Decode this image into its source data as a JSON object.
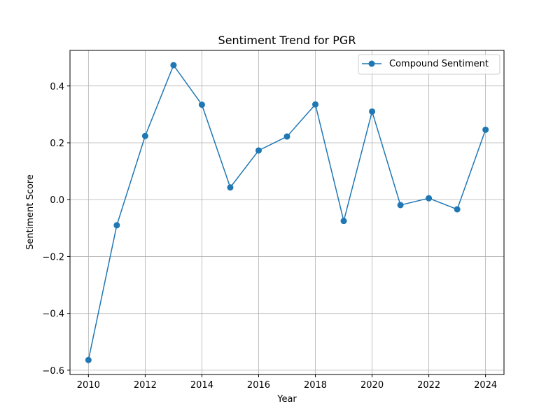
{
  "chart_data": {
    "type": "line",
    "title": "Sentiment Trend for PGR",
    "xlabel": "Year",
    "ylabel": "Sentiment Score",
    "xlim": [
      2009.35,
      2024.65
    ],
    "ylim": [
      -0.615,
      0.525
    ],
    "xticks": [
      2010,
      2012,
      2014,
      2016,
      2018,
      2020,
      2022,
      2024
    ],
    "xtick_labels": [
      "2010",
      "2012",
      "2014",
      "2016",
      "2018",
      "2020",
      "2022",
      "2024"
    ],
    "yticks": [
      -0.6,
      -0.4,
      -0.2,
      0.0,
      0.2,
      0.4
    ],
    "ytick_labels": [
      "−0.6",
      "−0.4",
      "−0.2",
      "0.0",
      "0.2",
      "0.4"
    ],
    "grid": true,
    "legend_position": "top-right",
    "series": [
      {
        "name": "Compound Sentiment",
        "color": "#1f77b4",
        "marker": "circle",
        "x": [
          2010,
          2011,
          2012,
          2013,
          2014,
          2015,
          2016,
          2017,
          2018,
          2019,
          2020,
          2021,
          2022,
          2023,
          2024
        ],
        "y": [
          -0.564,
          -0.09,
          0.224,
          0.473,
          0.334,
          0.043,
          0.173,
          0.222,
          0.335,
          -0.075,
          0.31,
          -0.019,
          0.005,
          -0.034,
          0.246
        ]
      }
    ]
  }
}
